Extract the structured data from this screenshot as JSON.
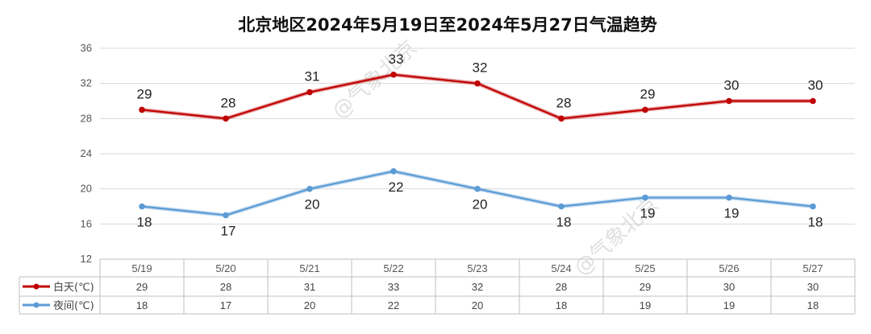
{
  "chart_data": {
    "type": "line",
    "title": "北京地区2024年5月19日至2024年5月27日气温趋势",
    "categories": [
      "5/19",
      "5/20",
      "5/21",
      "5/22",
      "5/23",
      "5/24",
      "5/25",
      "5/26",
      "5/27"
    ],
    "series": [
      {
        "name": "白天(℃)",
        "color": "#c00000",
        "values": [
          29,
          28,
          31,
          33,
          32,
          28,
          29,
          30,
          30
        ]
      },
      {
        "name": "夜间(℃)",
        "color": "#5b9bd5",
        "values": [
          18,
          17,
          20,
          22,
          20,
          18,
          19,
          19,
          18
        ]
      }
    ],
    "ylim": [
      12,
      36
    ],
    "yticks": [
      12,
      16,
      20,
      24,
      28,
      32,
      36
    ],
    "grid": true,
    "legend": "data-table",
    "watermark": "@气象北京"
  }
}
